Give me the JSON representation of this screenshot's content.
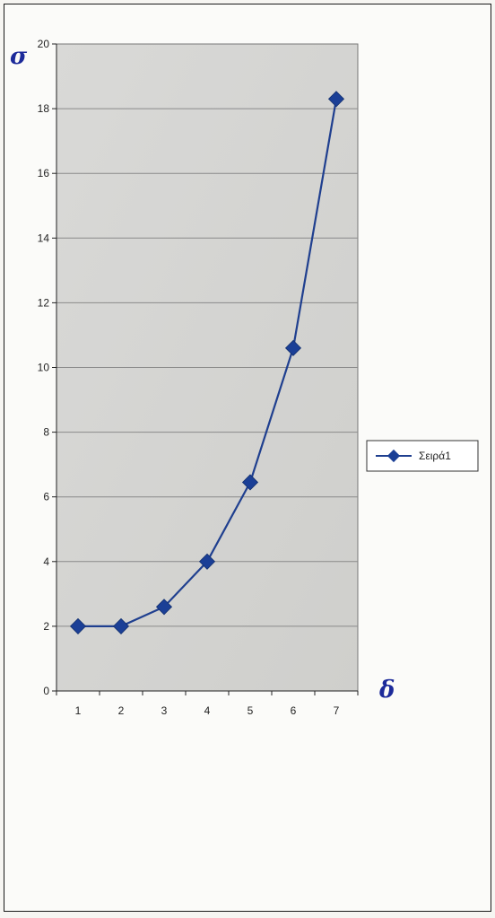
{
  "chart_data": {
    "type": "line",
    "x": [
      1,
      2,
      3,
      4,
      5,
      6,
      7
    ],
    "series": [
      {
        "name": "Σειρά1",
        "values": [
          2.0,
          2.0,
          2.6,
          4.0,
          6.45,
          10.6,
          18.3
        ]
      }
    ],
    "ylim": [
      0,
      20
    ],
    "yticks": [
      0,
      2,
      4,
      6,
      8,
      10,
      12,
      14,
      16,
      18,
      20
    ],
    "xticks": [
      1,
      2,
      3,
      4,
      5,
      6,
      7
    ],
    "xlabel": "δ",
    "ylabel": "σ",
    "grid": true,
    "legend_position": "right",
    "colors": {
      "series": "#1f3f8f",
      "marker": "#1b3f96",
      "handwriting": "#1c2a9a",
      "plot_background": "#d6d6d4"
    }
  }
}
